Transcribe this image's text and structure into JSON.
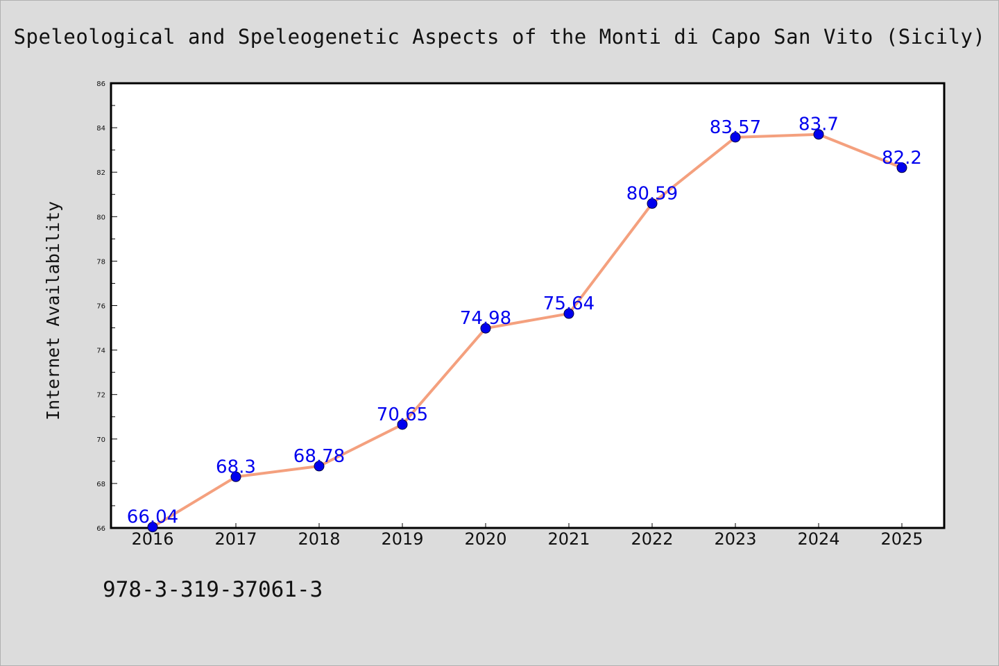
{
  "title": "Speleological and Speleogenetic Aspects of the Monti di Capo San Vito (Sicily)",
  "footer_text": "978-3-319-37061-3",
  "colors": {
    "background": "#dcdcdc",
    "plot_background": "#ffffff",
    "line": "#f4a07e",
    "marker": "#0000ee",
    "data_label": "#0000ee"
  },
  "chart_data": {
    "type": "line",
    "title": "Speleological and Speleogenetic Aspects of the Monti di Capo San Vito (Sicily)",
    "xlabel": "",
    "ylabel": "Internet Availability",
    "categories": [
      "2016",
      "2017",
      "2018",
      "2019",
      "2020",
      "2021",
      "2022",
      "2023",
      "2024",
      "2025"
    ],
    "series": [
      {
        "values": [
          66.04,
          68.3,
          68.78,
          70.65,
          74.98,
          75.64,
          80.59,
          83.57,
          83.7,
          82.2
        ],
        "labels": [
          "66.04",
          "68.3",
          "68.78",
          "70.65",
          "74.98",
          "75.64",
          "80.59",
          "83.57",
          "83.7",
          "82.2"
        ]
      }
    ],
    "ylim": [
      66,
      86
    ],
    "yticks": [
      66,
      68,
      70,
      72,
      74,
      76,
      78,
      80,
      82,
      84,
      86
    ],
    "grid": false,
    "legend": "none"
  }
}
